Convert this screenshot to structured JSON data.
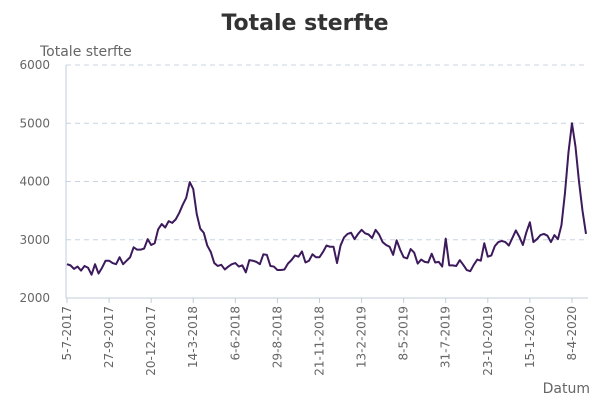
{
  "chart_data": {
    "type": "line",
    "title": "Totale sterfte",
    "xlabel": "Datum",
    "ylabel": "Totale sterfte",
    "ylim": [
      2000,
      6000
    ],
    "yticks": [
      2000,
      3000,
      4000,
      5000,
      6000
    ],
    "grid": "horizontal dashed",
    "legend": "none",
    "colors": {
      "line": "#3d1a5c",
      "grid": "#c8d4e0",
      "axis": "#c0ccd8",
      "text": "#666666",
      "title": "#333333"
    },
    "x_tick_labels": [
      "5-7-2017",
      "27-9-2017",
      "20-12-2017",
      "14-3-2018",
      "6-6-2018",
      "29-8-2018",
      "21-11-2018",
      "13-2-2019",
      "8-5-2019",
      "31-7-2019",
      "23-10-2019",
      "15-1-2020",
      "8-4-2020"
    ],
    "series": [
      {
        "values": [
          2580,
          2560,
          2500,
          2540,
          2470,
          2550,
          2520,
          2400,
          2580,
          2420,
          2520,
          2640,
          2640,
          2600,
          2580,
          2700,
          2580,
          2640,
          2700,
          2870,
          2830,
          2830,
          2850,
          3010,
          2910,
          2940,
          3180,
          3270,
          3210,
          3320,
          3290,
          3350,
          3460,
          3600,
          3720,
          3990,
          3870,
          3440,
          3190,
          3120,
          2900,
          2790,
          2600,
          2550,
          2570,
          2490,
          2540,
          2580,
          2600,
          2540,
          2560,
          2440,
          2650,
          2640,
          2620,
          2580,
          2750,
          2740,
          2550,
          2540,
          2480,
          2480,
          2490,
          2590,
          2650,
          2730,
          2710,
          2800,
          2610,
          2640,
          2750,
          2700,
          2700,
          2790,
          2900,
          2880,
          2880,
          2600,
          2900,
          3040,
          3100,
          3120,
          3010,
          3100,
          3170,
          3110,
          3090,
          3030,
          3170,
          3090,
          2960,
          2910,
          2880,
          2740,
          2990,
          2830,
          2700,
          2680,
          2840,
          2780,
          2590,
          2660,
          2620,
          2610,
          2760,
          2610,
          2620,
          2540,
          3020,
          2560,
          2560,
          2550,
          2650,
          2570,
          2480,
          2460,
          2570,
          2660,
          2640,
          2940,
          2710,
          2730,
          2890,
          2960,
          2980,
          2960,
          2900,
          3030,
          3160,
          3050,
          2910,
          3130,
          3300,
          2960,
          3010,
          3080,
          3100,
          3070,
          2960,
          3080,
          3010,
          3250,
          3800,
          4500,
          5000,
          4600,
          4000,
          3500,
          3100
        ]
      }
    ]
  }
}
